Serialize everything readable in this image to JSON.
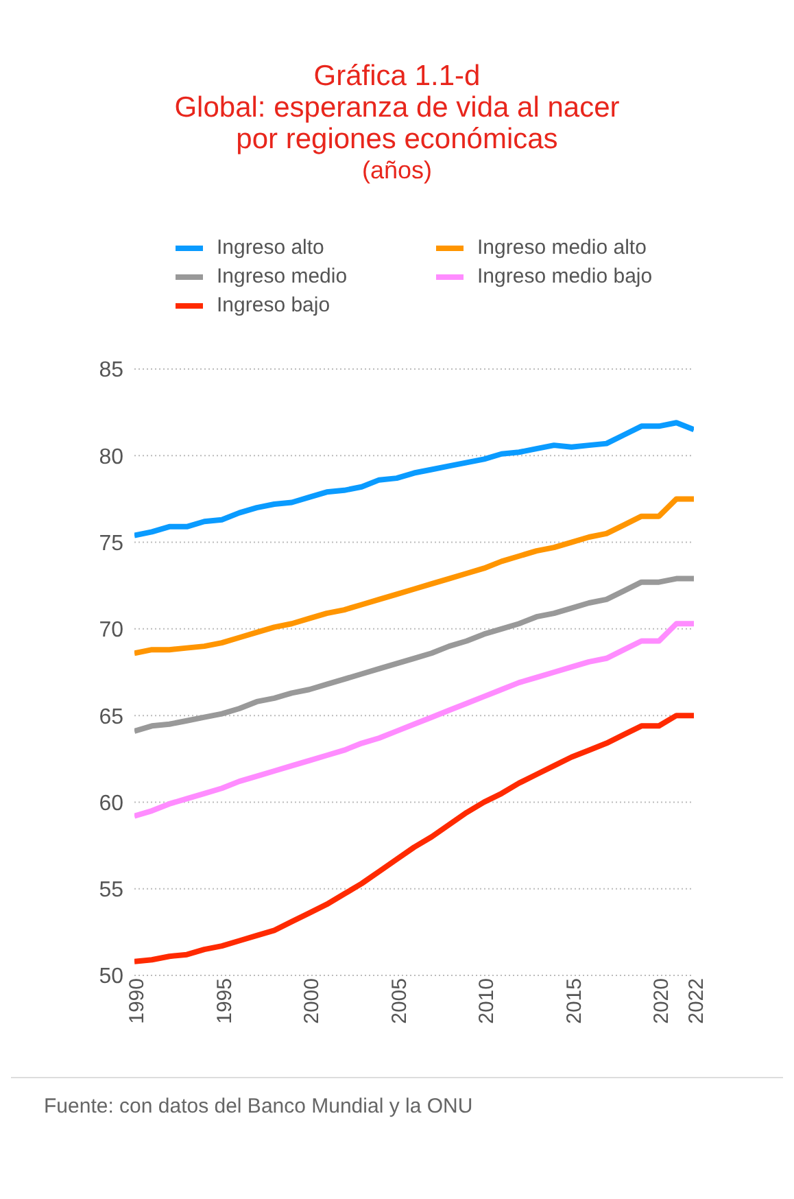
{
  "chart_data": {
    "type": "line",
    "title": "Gráfica 1.1-d\nGlobal: esperanza de vida al nacer\npor regiones económicas",
    "subtitle": "(años)",
    "x": [
      1990,
      1991,
      1992,
      1993,
      1994,
      1995,
      1996,
      1997,
      1998,
      1999,
      2000,
      2001,
      2002,
      2003,
      2004,
      2005,
      2006,
      2007,
      2008,
      2009,
      2010,
      2011,
      2012,
      2013,
      2014,
      2015,
      2016,
      2017,
      2018,
      2019,
      2020,
      2021,
      2022
    ],
    "series": [
      {
        "name": "Ingreso alto",
        "color": "#0a9bff",
        "values": [
          75.4,
          75.6,
          75.9,
          75.9,
          76.2,
          76.3,
          76.7,
          77.0,
          77.2,
          77.3,
          77.6,
          77.9,
          78.0,
          78.2,
          78.6,
          78.7,
          79.0,
          79.2,
          79.4,
          79.6,
          79.8,
          80.1,
          80.2,
          80.4,
          80.6,
          80.5,
          80.6,
          80.7,
          81.2,
          81.7,
          81.7,
          81.9,
          81.5
        ]
      },
      {
        "name": "Ingreso medio alto",
        "color": "#ff9500",
        "values": [
          68.6,
          68.8,
          68.8,
          68.9,
          69.0,
          69.2,
          69.5,
          69.8,
          70.1,
          70.3,
          70.6,
          70.9,
          71.1,
          71.4,
          71.7,
          72.0,
          72.3,
          72.6,
          72.9,
          73.2,
          73.5,
          73.9,
          74.2,
          74.5,
          74.7,
          75.0,
          75.3,
          75.5,
          76.0,
          76.5,
          76.5,
          77.5,
          77.5
        ]
      },
      {
        "name": "Ingreso medio",
        "color": "#999999",
        "values": [
          64.1,
          64.4,
          64.5,
          64.7,
          64.9,
          65.1,
          65.4,
          65.8,
          66.0,
          66.3,
          66.5,
          66.8,
          67.1,
          67.4,
          67.7,
          68.0,
          68.3,
          68.6,
          69.0,
          69.3,
          69.7,
          70.0,
          70.3,
          70.7,
          70.9,
          71.2,
          71.5,
          71.7,
          72.2,
          72.7,
          72.7,
          72.9,
          72.9
        ]
      },
      {
        "name": "Ingreso medio bajo",
        "color": "#ff8cff",
        "values": [
          59.2,
          59.5,
          59.9,
          60.2,
          60.5,
          60.8,
          61.2,
          61.5,
          61.8,
          62.1,
          62.4,
          62.7,
          63.0,
          63.4,
          63.7,
          64.1,
          64.5,
          64.9,
          65.3,
          65.7,
          66.1,
          66.5,
          66.9,
          67.2,
          67.5,
          67.8,
          68.1,
          68.3,
          68.8,
          69.3,
          69.3,
          70.3,
          70.3
        ]
      },
      {
        "name": "Ingreso bajo",
        "color": "#ff2a00",
        "values": [
          50.8,
          50.9,
          51.1,
          51.2,
          51.5,
          51.7,
          52.0,
          52.3,
          52.6,
          53.1,
          53.6,
          54.1,
          54.7,
          55.3,
          56.0,
          56.7,
          57.4,
          58.0,
          58.7,
          59.4,
          60.0,
          60.5,
          61.1,
          61.6,
          62.1,
          62.6,
          63.0,
          63.4,
          63.9,
          64.4,
          64.4,
          65.0,
          65.0
        ]
      }
    ],
    "xlim": [
      1990,
      2022
    ],
    "xticks": [
      1990,
      1995,
      2000,
      2005,
      2010,
      2015,
      2020,
      2022
    ],
    "ylim": [
      50,
      85
    ],
    "yticks": [
      50,
      55,
      60,
      65,
      70,
      75,
      80,
      85
    ],
    "grid": "y",
    "legend": "top",
    "marker": "none",
    "line_style": "solid",
    "annotations": [
      "Fuente: con datos del Banco Mundial y la ONU"
    ]
  }
}
